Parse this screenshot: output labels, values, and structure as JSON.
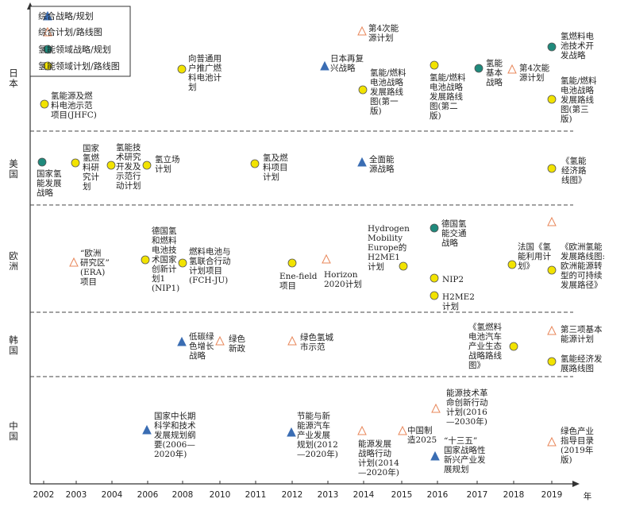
{
  "legend": {
    "items": [
      {
        "shape": "tri-blue",
        "label": "综合战略/规划"
      },
      {
        "shape": "tri-orange",
        "label": "综合计划/路线图"
      },
      {
        "shape": "circle-green",
        "label": "氢能领域战略/规划"
      },
      {
        "shape": "circle-yellow",
        "label": "氢能领域计划/路线图"
      }
    ]
  },
  "rows": [
    {
      "name": "日本"
    },
    {
      "name": "美国"
    },
    {
      "name": "欧洲"
    },
    {
      "name": "韩国"
    },
    {
      "name": "中国"
    }
  ],
  "axis": {
    "years": [
      "2002",
      "2003",
      "2004",
      "2006",
      "2008",
      "2010",
      "2011",
      "2012",
      "2013",
      "2014",
      "2015",
      "2016",
      "2017",
      "2018",
      "2019"
    ],
    "unit": "年"
  },
  "items": {
    "jp1": "氢能源及燃\n料电池示范\n项目(JHFC)",
    "jp2": "向普通用\n户推广燃\n料电池计\n划",
    "jp3": "日本再复\n兴战略",
    "jp4": "第4次能\n源计划",
    "jp5": "氢能/燃料\n电池战略\n发展路线\n图(第一\n版)",
    "jp6": "氢能/燃料\n电池战略\n发展路线\n图(第二\n版)",
    "jp7": "氢能\n基本\n战略",
    "jp8": "第4次能\n源计划",
    "jp9": "氢燃料电\n池技术开\n发战略",
    "jp10": "氢能/燃料\n电池战略\n发展路线\n图(第三\n版)",
    "us1": "国家氢\n能发展\n战略",
    "us2": "国家\n氢燃\n料研\n究计\n划",
    "us3": "氢能技\n术研究\n开发及\n示范行\n动计划",
    "us4": "氢立场\n计划",
    "us5": "氢及燃\n料项目\n计划",
    "us6": "全面能\n源战略",
    "us7": "《氢能\n经济路\n线图》",
    "eu1": "“欧洲\n研究区”\n(ERA)\n项目",
    "eu2": "德国氢\n和燃料\n电池技\n术国家\n创新计\n划1\n(NIP1)",
    "eu3": "燃料电池与\n氢联合行动\n计划项目\n(FCH-JU)",
    "eu4": "Ene-field\n项目",
    "eu5": "Horizon\n2020计划",
    "eu6": "Hydrogen\nMobility\nEurope的\nH2ME1\n计划",
    "eu7": "德国氢\n能交通\n战略",
    "eu8": "NIP2",
    "eu9": "H2ME2\n计划",
    "eu10": "法国《氢\n能利用计\n划》",
    "eu11": "《欧洲氢能\n发展路线图:\n欧洲能源转\n型的可持续\n发展路径》",
    "kr1": "低碳绿\n色增长\n战略",
    "kr2": "绿色\n新政",
    "kr3": "绿色氢城\n市示范",
    "kr4": "《氢燃料\n电池汽车\n产业生态\n战略路线\n图》",
    "kr5": "第三项基本\n能源计划",
    "kr6": "氢能经济发\n展路线图",
    "cn1": "国家中长期\n科学和技术\n发展规划纲\n要(2006—\n2020年)",
    "cn2": "节能与新\n能源汽车\n产业发展\n规划(2012\n—2020年)",
    "cn3": "能源发展\n战略行动\n计划(2014\n—2020年)",
    "cn4": "中国制\n造2025",
    "cn5": "能源技术革\n命创新行动\n计划(2016\n—2030年)",
    "cn6": "“十三五”\n国家战略性\n新兴产业发\n展规划",
    "cn7": "绿色产业\n指导目录\n(2019年\n版)"
  },
  "colors": {
    "tri_blue": "#3a6db3",
    "tri_orange": "#e8875a",
    "circle_green": "#1f8a7c",
    "circle_yellow": "#f2e300",
    "dash": "#444444"
  }
}
